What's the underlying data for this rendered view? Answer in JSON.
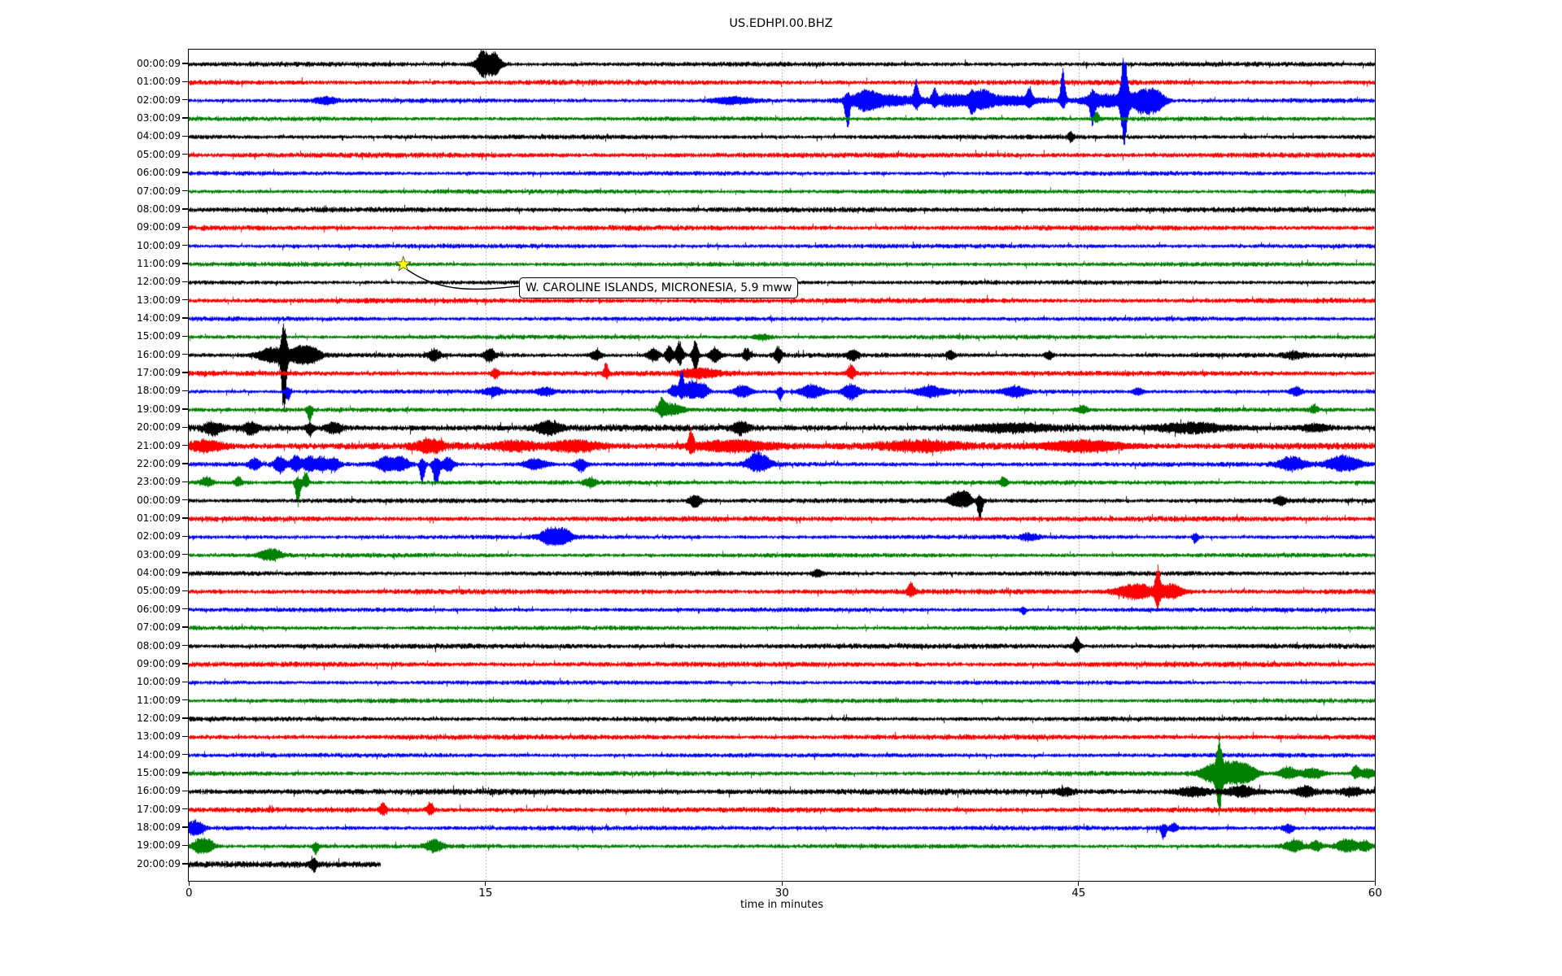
{
  "title": "US.EDHPI.00.BHZ",
  "chart_data": {
    "type": "line",
    "subtype": "seismogram-dayplot",
    "title": "US.EDHPI.00.BHZ",
    "xlabel": "time in minutes",
    "xlim": [
      0,
      60
    ],
    "x_ticks": [
      0,
      15,
      30,
      45,
      60
    ],
    "grid_minutes": [
      15,
      30,
      45
    ],
    "grid_style": "dotted",
    "grid_color": "#999999",
    "trace_color_cycle": [
      "#000000",
      "#ff0000",
      "#0000ff",
      "#008000"
    ],
    "events_format": "[minute, width_minutes, up_px, down_px]",
    "annotation": {
      "text": "W. CAROLINE ISLANDS, MICRONESIA, 5.9 mww",
      "row_index": 11,
      "row_label": "11:00:09",
      "minute": 10.8,
      "marker": "star",
      "marker_color": "#ffff00"
    },
    "rows": [
      {
        "label": "00:00:09",
        "noise": 1.7,
        "events": [
          [
            14.8,
            0.15,
            8,
            8
          ],
          [
            15.1,
            0.4,
            13,
            13
          ],
          [
            15.5,
            0.15,
            7,
            7
          ]
        ]
      },
      {
        "label": "01:00:09",
        "noise": 1.9,
        "events": []
      },
      {
        "label": "02:00:09",
        "noise": 1.6,
        "events": [
          [
            6.9,
            0.4,
            4,
            4
          ],
          [
            27.5,
            0.8,
            4,
            4
          ],
          [
            33.3,
            0.1,
            8,
            32
          ],
          [
            34.2,
            0.4,
            9,
            9
          ],
          [
            35.2,
            1.2,
            6,
            6
          ],
          [
            36.8,
            0.1,
            24,
            8
          ],
          [
            37.7,
            0.1,
            13,
            6
          ],
          [
            38.6,
            0.6,
            7,
            7
          ],
          [
            39.6,
            0.1,
            6,
            13
          ],
          [
            40.1,
            0.4,
            11,
            8
          ],
          [
            41.5,
            1.2,
            5,
            5
          ],
          [
            42.5,
            0.1,
            15,
            6
          ],
          [
            44.2,
            0.1,
            42,
            10
          ],
          [
            45.7,
            0.1,
            8,
            28
          ],
          [
            46.3,
            0.8,
            8,
            8
          ],
          [
            47.3,
            0.13,
            56,
            52
          ],
          [
            48.3,
            0.5,
            13,
            16
          ],
          [
            49.0,
            0.3,
            8,
            8
          ]
        ]
      },
      {
        "label": "03:00:09",
        "noise": 1.6,
        "events": [
          [
            45.9,
            0.1,
            9,
            4
          ]
        ]
      },
      {
        "label": "04:00:09",
        "noise": 1.7,
        "events": [
          [
            44.6,
            0.1,
            6,
            6
          ]
        ]
      },
      {
        "label": "05:00:09",
        "noise": 1.9,
        "events": []
      },
      {
        "label": "06:00:09",
        "noise": 1.6,
        "events": []
      },
      {
        "label": "07:00:09",
        "noise": 1.6,
        "events": []
      },
      {
        "label": "08:00:09",
        "noise": 1.9,
        "events": []
      },
      {
        "label": "09:00:09",
        "noise": 1.9,
        "events": []
      },
      {
        "label": "10:00:09",
        "noise": 1.6,
        "events": []
      },
      {
        "label": "11:00:09",
        "noise": 1.6,
        "events": []
      },
      {
        "label": "12:00:09",
        "noise": 1.6,
        "events": []
      },
      {
        "label": "13:00:09",
        "noise": 1.9,
        "events": []
      },
      {
        "label": "14:00:09",
        "noise": 1.6,
        "events": []
      },
      {
        "label": "15:00:09",
        "noise": 1.6,
        "events": [
          [
            29.0,
            0.3,
            3,
            3
          ]
        ]
      },
      {
        "label": "16:00:09",
        "noise": 1.7,
        "events": [
          [
            4.2,
            0.5,
            9,
            9
          ],
          [
            4.8,
            0.1,
            38,
            80
          ],
          [
            5.6,
            0.4,
            10,
            10
          ],
          [
            6.3,
            0.3,
            7,
            7
          ],
          [
            12.4,
            0.2,
            7,
            7
          ],
          [
            15.2,
            0.2,
            8,
            8
          ],
          [
            20.6,
            0.2,
            5,
            5
          ],
          [
            23.5,
            0.2,
            8,
            8
          ],
          [
            24.3,
            0.13,
            12,
            10
          ],
          [
            24.8,
            0.13,
            16,
            12
          ],
          [
            25.6,
            0.1,
            20,
            26
          ],
          [
            26.6,
            0.2,
            8,
            8
          ],
          [
            28.2,
            0.13,
            8,
            6
          ],
          [
            29.8,
            0.13,
            10,
            8
          ],
          [
            33.6,
            0.2,
            6,
            6
          ],
          [
            38.5,
            0.13,
            6,
            6
          ],
          [
            43.5,
            0.13,
            5,
            5
          ],
          [
            55.9,
            0.3,
            4,
            4
          ]
        ]
      },
      {
        "label": "17:00:09",
        "noise": 1.9,
        "events": [
          [
            15.5,
            0.13,
            6,
            6
          ],
          [
            21.1,
            0.1,
            11,
            5
          ],
          [
            25.8,
            0.7,
            5,
            5
          ],
          [
            33.5,
            0.15,
            11,
            6
          ]
        ]
      },
      {
        "label": "18:00:09",
        "noise": 1.6,
        "events": [
          [
            5.0,
            0.1,
            5,
            11
          ],
          [
            15.4,
            0.3,
            5,
            5
          ],
          [
            18.0,
            0.3,
            5,
            5
          ],
          [
            24.5,
            0.13,
            8,
            6
          ],
          [
            24.9,
            0.1,
            24,
            8
          ],
          [
            25.4,
            0.3,
            13,
            8
          ],
          [
            26.0,
            0.2,
            9,
            6
          ],
          [
            28.0,
            0.3,
            8,
            7
          ],
          [
            29.9,
            0.1,
            5,
            11
          ],
          [
            31.5,
            0.4,
            8,
            8
          ],
          [
            33.5,
            0.3,
            9,
            9
          ],
          [
            37.5,
            0.5,
            6,
            6
          ],
          [
            41.8,
            0.4,
            6,
            6
          ],
          [
            48.0,
            0.2,
            4,
            4
          ],
          [
            56.0,
            0.2,
            5,
            5
          ]
        ]
      },
      {
        "label": "19:00:09",
        "noise": 1.6,
        "events": [
          [
            6.1,
            0.1,
            4,
            13
          ],
          [
            23.9,
            0.13,
            13,
            6
          ],
          [
            24.4,
            0.4,
            7,
            6
          ],
          [
            45.2,
            0.2,
            5,
            4
          ],
          [
            56.9,
            0.13,
            6,
            4
          ]
        ]
      },
      {
        "label": "20:00:09",
        "noise": 2.4,
        "events": [
          [
            1.2,
            0.3,
            6,
            8
          ],
          [
            3.1,
            0.25,
            6,
            8
          ],
          [
            6.1,
            0.13,
            5,
            9
          ],
          [
            7.3,
            0.3,
            6,
            6
          ],
          [
            18.2,
            0.4,
            7,
            7
          ],
          [
            27.9,
            0.3,
            7,
            7
          ],
          [
            41.5,
            1.4,
            4,
            4
          ],
          [
            50.8,
            1.1,
            5,
            5
          ],
          [
            57.0,
            0.5,
            4,
            4
          ]
        ]
      },
      {
        "label": "21:00:09",
        "noise": 2.6,
        "events": [
          [
            0.8,
            0.7,
            6,
            6
          ],
          [
            12.2,
            0.5,
            7,
            7
          ],
          [
            16.5,
            0.7,
            5,
            5
          ],
          [
            19.5,
            0.9,
            6,
            6
          ],
          [
            25.4,
            0.1,
            20,
            8
          ],
          [
            27.5,
            1.4,
            6,
            6
          ],
          [
            37.0,
            1.4,
            5,
            5
          ],
          [
            45.3,
            1.4,
            6,
            6
          ]
        ]
      },
      {
        "label": "22:00:09",
        "noise": 1.7,
        "events": [
          [
            3.3,
            0.2,
            7,
            7
          ],
          [
            4.6,
            0.2,
            9,
            11
          ],
          [
            5.4,
            0.2,
            11,
            8
          ],
          [
            6.1,
            0.2,
            11,
            9
          ],
          [
            6.7,
            0.2,
            9,
            8
          ],
          [
            7.3,
            0.2,
            8,
            8
          ],
          [
            9.9,
            0.3,
            9,
            8
          ],
          [
            10.7,
            0.3,
            9,
            8
          ],
          [
            11.8,
            0.1,
            6,
            24
          ],
          [
            12.5,
            0.13,
            8,
            28
          ],
          [
            13.1,
            0.2,
            8,
            9
          ],
          [
            17.5,
            0.4,
            7,
            6
          ],
          [
            19.8,
            0.2,
            6,
            9
          ],
          [
            28.8,
            0.4,
            15,
            8
          ],
          [
            55.8,
            0.5,
            9,
            7
          ],
          [
            58.4,
            0.6,
            11,
            8
          ]
        ]
      },
      {
        "label": "23:00:09",
        "noise": 1.6,
        "events": [
          [
            0.9,
            0.2,
            7,
            4
          ],
          [
            2.5,
            0.13,
            7,
            4
          ],
          [
            5.5,
            0.1,
            6,
            30
          ],
          [
            5.9,
            0.1,
            15,
            6
          ],
          [
            20.3,
            0.2,
            5,
            6
          ],
          [
            41.2,
            0.13,
            7,
            4
          ]
        ]
      },
      {
        "label": "00:00:09",
        "noise": 1.7,
        "events": [
          [
            25.6,
            0.2,
            6,
            8
          ],
          [
            38.8,
            0.3,
            10,
            6
          ],
          [
            39.3,
            0.2,
            10,
            6
          ],
          [
            40.0,
            0.1,
            6,
            24
          ],
          [
            55.2,
            0.2,
            5,
            5
          ]
        ]
      },
      {
        "label": "01:00:09",
        "noise": 1.9,
        "events": []
      },
      {
        "label": "02:00:09",
        "noise": 1.6,
        "events": [
          [
            18.3,
            0.4,
            11,
            9
          ],
          [
            19.0,
            0.3,
            7,
            6
          ],
          [
            42.5,
            0.3,
            4,
            4
          ],
          [
            50.9,
            0.1,
            4,
            8
          ]
        ]
      },
      {
        "label": "03:00:09",
        "noise": 1.6,
        "events": [
          [
            4.1,
            0.4,
            8,
            6
          ]
        ]
      },
      {
        "label": "04:00:09",
        "noise": 1.7,
        "events": [
          [
            31.8,
            0.2,
            4,
            4
          ]
        ]
      },
      {
        "label": "05:00:09",
        "noise": 1.9,
        "events": [
          [
            36.5,
            0.13,
            11,
            5
          ],
          [
            47.9,
            0.7,
            9,
            9
          ],
          [
            49.0,
            0.1,
            30,
            17
          ],
          [
            49.7,
            0.4,
            9,
            8
          ]
        ]
      },
      {
        "label": "06:00:09",
        "noise": 1.6,
        "events": [
          [
            42.2,
            0.1,
            3,
            6
          ]
        ]
      },
      {
        "label": "07:00:09",
        "noise": 1.6,
        "events": []
      },
      {
        "label": "08:00:09",
        "noise": 1.9,
        "events": [
          [
            44.9,
            0.13,
            10,
            8
          ]
        ]
      },
      {
        "label": "09:00:09",
        "noise": 1.9,
        "events": []
      },
      {
        "label": "10:00:09",
        "noise": 1.6,
        "events": []
      },
      {
        "label": "11:00:09",
        "noise": 1.6,
        "events": []
      },
      {
        "label": "12:00:09",
        "noise": 1.7,
        "events": []
      },
      {
        "label": "13:00:09",
        "noise": 1.9,
        "events": []
      },
      {
        "label": "14:00:09",
        "noise": 1.6,
        "events": [
          [
            52.1,
            0.1,
            3,
            5
          ]
        ]
      },
      {
        "label": "15:00:09",
        "noise": 1.7,
        "events": [
          [
            51.8,
            0.5,
            10,
            10
          ],
          [
            52.1,
            0.1,
            36,
            44
          ],
          [
            52.8,
            0.5,
            12,
            10
          ],
          [
            53.5,
            0.4,
            8,
            8
          ],
          [
            55.6,
            0.3,
            8,
            6
          ],
          [
            56.8,
            0.4,
            6,
            6
          ],
          [
            59.0,
            0.13,
            10,
            5
          ],
          [
            59.6,
            0.3,
            6,
            5
          ]
        ]
      },
      {
        "label": "16:00:09",
        "noise": 2.2,
        "events": [
          [
            44.3,
            0.3,
            4,
            4
          ],
          [
            50.8,
            0.6,
            5,
            5
          ],
          [
            53.2,
            0.5,
            6,
            6
          ],
          [
            56.5,
            0.3,
            6,
            5
          ],
          [
            58.8,
            0.3,
            4,
            4
          ]
        ]
      },
      {
        "label": "17:00:09",
        "noise": 1.9,
        "events": [
          [
            9.8,
            0.13,
            8,
            5
          ],
          [
            12.2,
            0.13,
            9,
            5
          ]
        ]
      },
      {
        "label": "18:00:09",
        "noise": 1.7,
        "events": [
          [
            0.3,
            0.3,
            9,
            9
          ],
          [
            49.3,
            0.1,
            4,
            15
          ],
          [
            49.8,
            0.13,
            6,
            4
          ],
          [
            55.6,
            0.2,
            4,
            6
          ]
        ]
      },
      {
        "label": "19:00:09",
        "noise": 1.6,
        "events": [
          [
            0.5,
            0.25,
            9,
            8
          ],
          [
            1.0,
            0.2,
            8,
            6
          ],
          [
            6.4,
            0.1,
            4,
            10
          ],
          [
            12.4,
            0.3,
            8,
            6
          ],
          [
            55.9,
            0.3,
            8,
            6
          ],
          [
            57.0,
            0.2,
            6,
            5
          ],
          [
            58.6,
            0.4,
            8,
            6
          ],
          [
            59.5,
            0.2,
            6,
            5
          ]
        ]
      },
      {
        "label": "20:00:09",
        "noise": 2.3,
        "xmax": 9.7,
        "events": [
          [
            6.3,
            0.1,
            5,
            8
          ]
        ]
      }
    ]
  }
}
